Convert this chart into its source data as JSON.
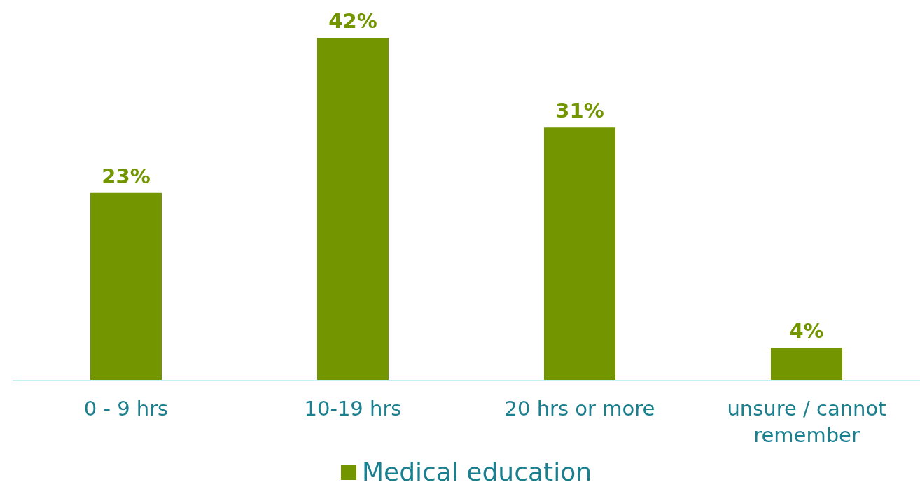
{
  "chart_data": {
    "type": "bar",
    "categories": [
      "0 - 9 hrs",
      "10-19 hrs",
      "20 hrs or more",
      "unsure / cannot remember"
    ],
    "series": [
      {
        "name": "Medical education",
        "color": "#739600",
        "values": [
          23,
          42,
          31,
          4
        ],
        "value_labels": [
          "23%",
          "42%",
          "31%",
          "4%"
        ]
      }
    ],
    "legend": "bottom"
  }
}
